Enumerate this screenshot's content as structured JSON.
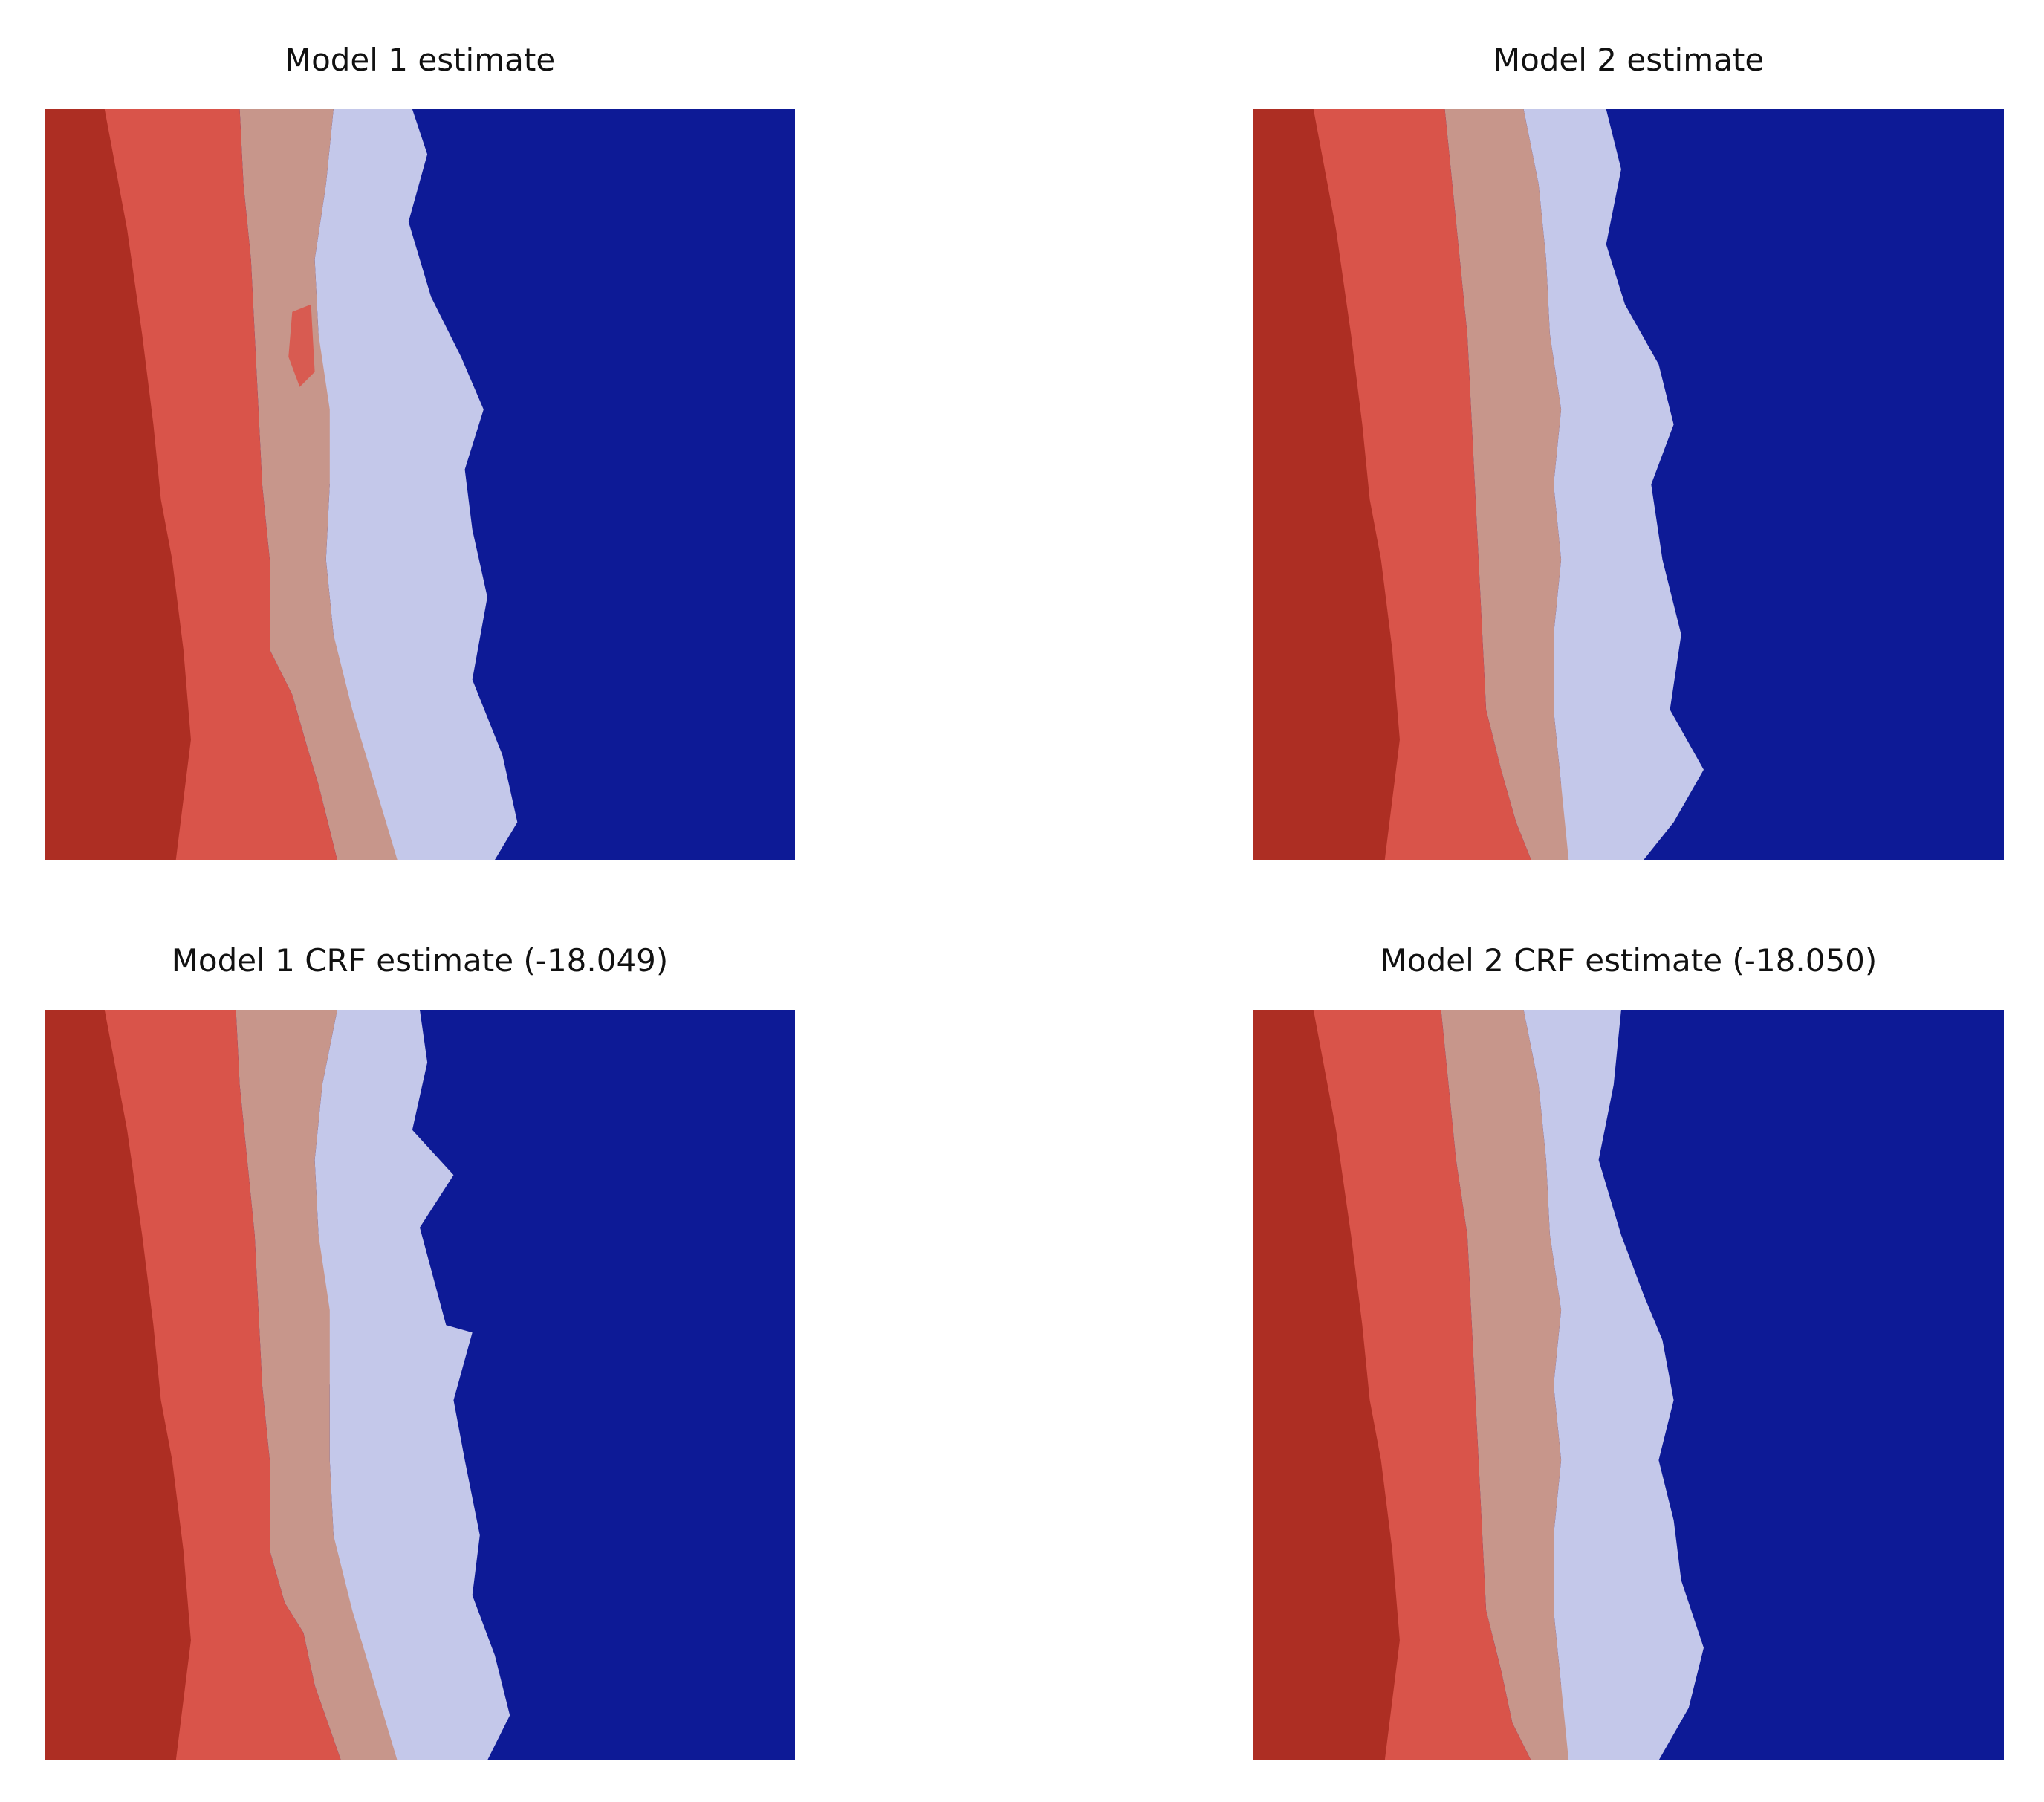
{
  "figure": {
    "panels": [
      {
        "id": "m1",
        "title": "Model 1 estimate"
      },
      {
        "id": "m2",
        "title": "Model 2 estimate"
      },
      {
        "id": "m1crf",
        "title": "Model 1 CRF estimate (-18.049)"
      },
      {
        "id": "m2crf",
        "title": "Model 2 CRF estimate (-18.050)"
      }
    ]
  },
  "colors": {
    "vegetation_dark": "#a5281c",
    "dune_red": "#d9544a",
    "beach_sand": "#c7968b",
    "surf_white": "#c4c8ea",
    "water_blue": "#0d1a96"
  }
}
